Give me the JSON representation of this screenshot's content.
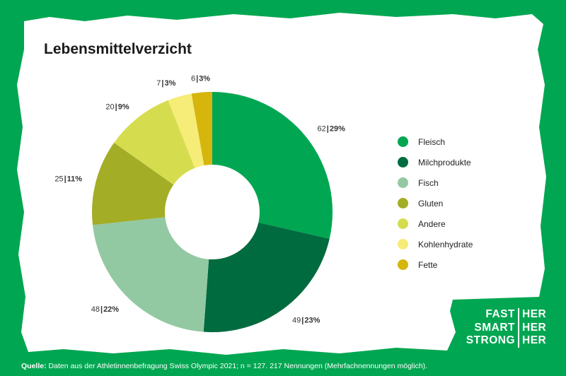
{
  "title": "Lebensmittelverzicht",
  "colors": {
    "background": "#00a651",
    "card": "#ffffff"
  },
  "chart_data": {
    "type": "pie",
    "donut": true,
    "title": "Lebensmittelverzicht",
    "legend_position": "right",
    "slices": [
      {
        "name": "Fleisch",
        "count": 62,
        "percent_label": "29%",
        "value": 62,
        "color": "#00a651"
      },
      {
        "name": "Milchprodukte",
        "count": 49,
        "percent_label": "23%",
        "value": 49,
        "color": "#006b3f"
      },
      {
        "name": "Fisch",
        "count": 48,
        "percent_label": "22%",
        "value": 48,
        "color": "#93c9a2"
      },
      {
        "name": "Gluten",
        "count": 25,
        "percent_label": "11%",
        "value": 25,
        "color": "#a3ad25"
      },
      {
        "name": "Andere",
        "count": 20,
        "percent_label": "9%",
        "value": 20,
        "color": "#d5dd4f"
      },
      {
        "name": "Kohlenhydrate",
        "count": 7,
        "percent_label": "3%",
        "value": 7,
        "color": "#f6ec78"
      },
      {
        "name": "Fette",
        "count": 6,
        "percent_label": "3%",
        "value": 6,
        "color": "#d6b50c"
      }
    ]
  },
  "source": {
    "label": "Quelle:",
    "text": "Daten aus der Athletinnenbefragung Swiss Olympic 2021; n = 127. 217 Nennungen (Mehrfachnennungen möglich)."
  },
  "brand": {
    "left": [
      "FAST",
      "SMART",
      "STRONG"
    ],
    "right": [
      "HER",
      "HER",
      "HER"
    ]
  }
}
